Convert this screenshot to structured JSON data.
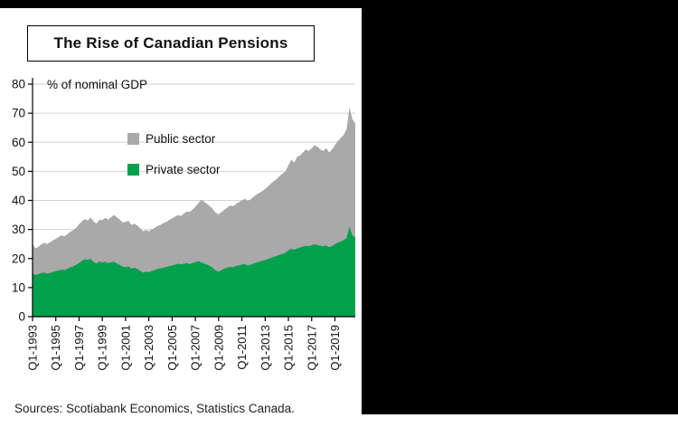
{
  "page": {
    "source_note": "Sources: Scotiabank Economics, Statistics Canada."
  },
  "chart_data": {
    "type": "area",
    "stacked": true,
    "title": "The Rise of Canadian Pensions",
    "axis_label": "% of nominal GDP",
    "ylim": [
      0,
      80
    ],
    "yticks": [
      0,
      10,
      20,
      30,
      40,
      50,
      60,
      70,
      80
    ],
    "grid": true,
    "legend_position": "upper-left-inside",
    "frequency": "quarterly",
    "x_start": "Q1-1993",
    "x_end": "Q4-2020",
    "xtick_every_n_quarters": 8,
    "xticklabels": [
      "Q1-1993",
      "Q1-1995",
      "Q1-1997",
      "Q1-1999",
      "Q1-2001",
      "Q1-2003",
      "Q1-2005",
      "Q1-2007",
      "Q1-2009",
      "Q1-2011",
      "Q1-2013",
      "Q1-2015",
      "Q1-2017",
      "Q1-2019"
    ],
    "series": [
      {
        "name": "Private sector",
        "color": "#00A04D",
        "values": [
          15.0,
          14.3,
          14.6,
          15.0,
          15.2,
          14.8,
          15.0,
          15.4,
          15.6,
          15.9,
          16.2,
          16.0,
          16.5,
          17.0,
          17.3,
          17.8,
          18.5,
          19.2,
          19.8,
          19.5,
          19.9,
          18.8,
          18.3,
          19.0,
          18.6,
          18.9,
          18.4,
          18.7,
          18.9,
          18.3,
          17.8,
          17.2,
          17.0,
          17.3,
          16.5,
          16.8,
          16.4,
          15.8,
          15.2,
          15.5,
          15.3,
          15.7,
          16.0,
          16.4,
          16.6,
          16.9,
          17.1,
          17.4,
          17.6,
          17.9,
          18.2,
          18.0,
          18.2,
          18.4,
          18.1,
          18.5,
          18.8,
          19.1,
          18.7,
          18.3,
          17.9,
          17.4,
          16.8,
          15.9,
          15.5,
          16.0,
          16.5,
          16.9,
          17.1,
          17.0,
          17.4,
          17.7,
          17.9,
          18.1,
          17.6,
          17.9,
          18.3,
          18.6,
          18.9,
          19.2,
          19.5,
          19.8,
          20.2,
          20.6,
          20.9,
          21.3,
          21.6,
          22.0,
          22.8,
          23.3,
          23.0,
          23.5,
          23.8,
          24.1,
          24.4,
          24.2,
          24.6,
          24.9,
          24.7,
          24.4,
          24.2,
          24.5,
          23.9,
          24.3,
          25.0,
          25.5,
          25.9,
          26.3,
          27.0,
          31.0,
          28.0,
          27.2
        ]
      },
      {
        "name": "Public sector",
        "color": "#A9A9A9",
        "values": [
          10.0,
          9.2,
          9.4,
          9.8,
          10.3,
          10.2,
          10.6,
          10.8,
          11.2,
          11.5,
          11.8,
          11.6,
          11.9,
          12.2,
          12.5,
          12.8,
          13.3,
          13.6,
          13.8,
          13.5,
          14.3,
          14.0,
          13.7,
          14.4,
          14.6,
          15.1,
          15.0,
          15.5,
          16.1,
          15.9,
          15.6,
          15.2,
          15.6,
          15.7,
          15.1,
          15.2,
          15.0,
          14.6,
          14.2,
          14.3,
          14.1,
          14.3,
          14.6,
          14.8,
          15.0,
          15.3,
          15.5,
          15.8,
          16.2,
          16.5,
          16.8,
          16.6,
          17.2,
          17.8,
          17.9,
          18.3,
          19.0,
          19.9,
          21.5,
          21.3,
          20.9,
          20.6,
          20.2,
          19.9,
          19.7,
          20.0,
          20.3,
          20.7,
          21.1,
          21.0,
          21.4,
          21.7,
          22.1,
          22.5,
          22.2,
          22.5,
          22.9,
          23.4,
          23.7,
          24.0,
          24.5,
          25.0,
          25.6,
          26.0,
          26.5,
          27.1,
          27.6,
          28.0,
          29.2,
          30.7,
          30.0,
          31.5,
          31.7,
          32.4,
          33.1,
          32.8,
          33.4,
          34.1,
          33.8,
          33.1,
          32.8,
          33.5,
          32.6,
          33.2,
          34.0,
          35.0,
          35.6,
          36.2,
          37.5,
          41.0,
          40.0,
          39.3
        ]
      }
    ],
    "legend_order": [
      "Public sector",
      "Private sector"
    ],
    "note": "Public sector values are the gray stacked layer plotted above the green private sector layer; totals reach about 72% of GDP at the 2020 spike."
  }
}
